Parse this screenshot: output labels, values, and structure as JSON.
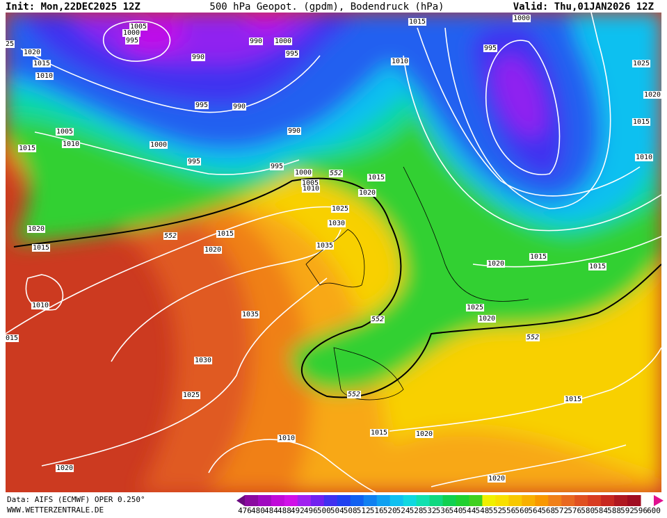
{
  "header": {
    "init": "Init: Mon,22DEC2025 12Z",
    "title": "500 hPa Geopot. (gpdm), Bodendruck (hPa)",
    "valid": "Valid: Thu,01JAN2026 12Z"
  },
  "map": {
    "isobar_labels": [
      "1005",
      "1000",
      "995",
      "25",
      "1020",
      "1015",
      "1010",
      "990",
      "990",
      "1000",
      "995",
      "995",
      "990",
      "990",
      "1000",
      "1005",
      "1010",
      "1015",
      "995",
      "995",
      "1000",
      "1005",
      "1010",
      "1015",
      "1020",
      "1025",
      "1030",
      "1035",
      "1020",
      "1015",
      "1020",
      "1015",
      "1010",
      "1035",
      "015",
      "1030",
      "1025",
      "1020",
      "1010",
      "1015",
      "1020",
      "1020",
      "1015",
      "1025",
      "1020",
      "1020",
      "1015",
      "1015",
      "1010",
      "1015",
      "1020",
      "1025",
      "995",
      "1000",
      "1010",
      "1015"
    ],
    "height_labels": [
      "552",
      "552",
      "552",
      "552",
      "552"
    ]
  },
  "footer": {
    "source": "Data: AIFS (ECMWF) OPER 0.250°",
    "site": "WWW.WETTERZENTRALE.DE"
  },
  "scale": {
    "labels": [
      476,
      480,
      484,
      488,
      492,
      496,
      500,
      504,
      508,
      512,
      516,
      520,
      524,
      528,
      532,
      536,
      540,
      544,
      548,
      552,
      556,
      560,
      564,
      568,
      572,
      576,
      580,
      584,
      588,
      592,
      596,
      600
    ],
    "colors": [
      "#6a0a80",
      "#8a0aa0",
      "#a00ac0",
      "#c00ad8",
      "#d010e8",
      "#a020f0",
      "#7020f0",
      "#4030f0",
      "#2040f0",
      "#1060f0",
      "#1080f0",
      "#10a0f0",
      "#10c0f0",
      "#10d8e0",
      "#10e0b0",
      "#10d880",
      "#10d050",
      "#20d030",
      "#40d020",
      "#f0f000",
      "#f8e000",
      "#f8c800",
      "#f8b000",
      "#f89800",
      "#f08018",
      "#e86820",
      "#e05020",
      "#d83c20",
      "#c82820",
      "#b01820",
      "#a00c20",
      "#e01090"
    ]
  }
}
